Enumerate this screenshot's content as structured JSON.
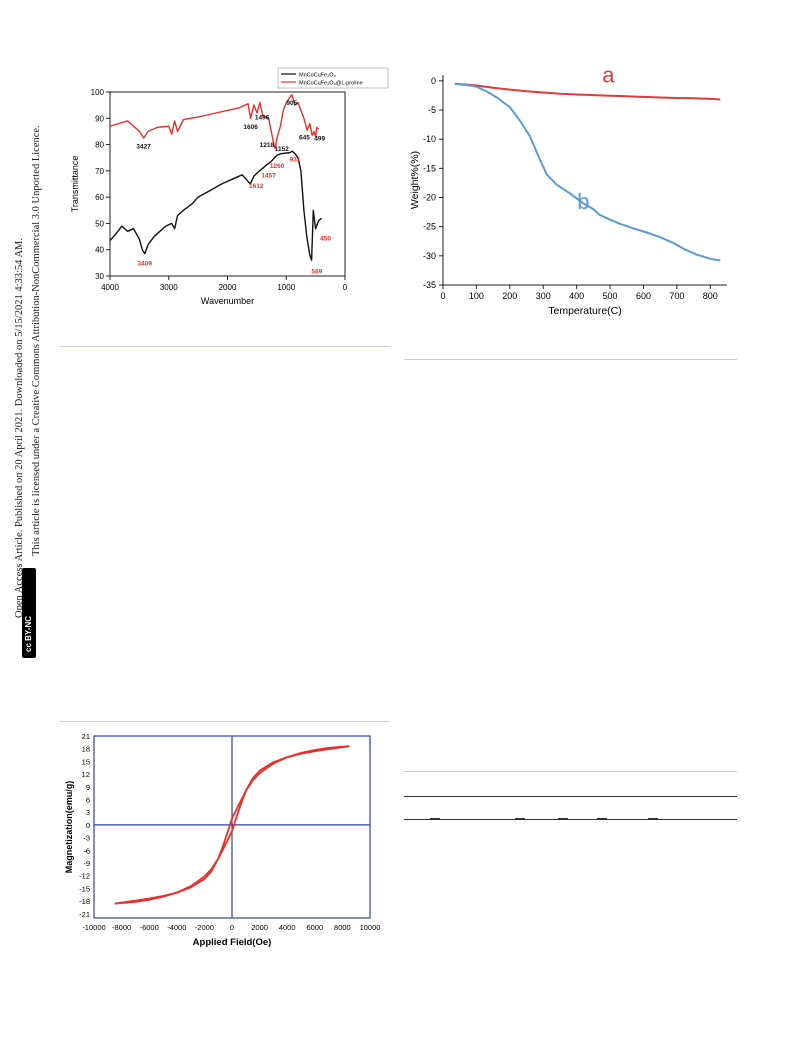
{
  "sidebar": {
    "line1": "Open Access Article. Published on 20 April 2021. Downloaded on 5/15/2021 4:33:54 AM.",
    "line2": "This article is licensed under a Creative Commons Attribution-NonCommercial 3.0 Unported Licence.",
    "badge_cc": "cc",
    "badge_by": "BY-NC"
  },
  "chart_data": [
    {
      "type": "line",
      "xlabel": "Wavenumber",
      "ylabel": "Transmittance",
      "xlim": [
        4000,
        0
      ],
      "ylim": [
        30,
        100
      ],
      "xticks": [
        4000,
        3000,
        2000,
        1000,
        0
      ],
      "yticks": [
        30,
        40,
        50,
        60,
        70,
        80,
        90,
        100
      ],
      "legend_position": "top-right",
      "series": [
        {
          "name": "MnCoCuFe₂O₄",
          "color": "#111111",
          "x": [
            4000,
            3900,
            3800,
            3700,
            3600,
            3500,
            3450,
            3409,
            3350,
            3250,
            3150,
            3050,
            2950,
            2900,
            2850,
            2750,
            2600,
            2500,
            2300,
            2100,
            1900,
            1750,
            1612,
            1550,
            1457,
            1400,
            1350,
            1260,
            1200,
            1152,
            1100,
            931,
            900,
            850,
            800,
            750,
            700,
            650,
            600,
            569,
            540,
            500,
            450,
            400
          ],
          "y": [
            43.5,
            46,
            49,
            47,
            48,
            44,
            40,
            38.5,
            42,
            45,
            47,
            49,
            50,
            48,
            53,
            55,
            57.5,
            60,
            62.5,
            65,
            67,
            68.5,
            65,
            68,
            70,
            71,
            72,
            73.5,
            75,
            76,
            76.5,
            77,
            77.5,
            76.5,
            75,
            70,
            55,
            45,
            38,
            36,
            55,
            48,
            51,
            52
          ]
        },
        {
          "name": "MnCoCuFe₂O₄@L-proline",
          "color": "#e8302a",
          "x": [
            4000,
            3850,
            3700,
            3600,
            3500,
            3427,
            3350,
            3200,
            3000,
            2950,
            2900,
            2850,
            2750,
            2500,
            2200,
            2000,
            1800,
            1650,
            1606,
            1550,
            1496,
            1450,
            1400,
            1300,
            1218,
            1190,
            1152,
            1100,
            1050,
            1000,
            905,
            850,
            800,
            750,
            700,
            645,
            600,
            560,
            530,
            499,
            480,
            450
          ],
          "y": [
            87,
            88,
            89,
            87,
            85,
            82.5,
            85,
            86.5,
            87,
            84,
            89,
            85,
            89.5,
            90.5,
            92,
            93,
            94,
            95.5,
            90,
            95,
            92,
            96,
            91,
            90,
            81,
            78.5,
            83,
            87,
            93,
            96,
            99,
            95,
            96,
            93,
            90,
            85.5,
            88,
            83.5,
            85,
            83,
            86.5,
            86
          ]
        }
      ],
      "annotations": [
        {
          "label": "3427",
          "x": 3427,
          "y": 78.5,
          "color": "#111111"
        },
        {
          "label": "1606",
          "x": 1606,
          "y": 86,
          "color": "#111111"
        },
        {
          "label": "1496",
          "x": 1410,
          "y": 89.5,
          "color": "#111111"
        },
        {
          "label": "905",
          "x": 905,
          "y": 95,
          "color": "#111111"
        },
        {
          "label": "1218",
          "x": 1330,
          "y": 79,
          "color": "#111111"
        },
        {
          "label": "1152",
          "x": 1075,
          "y": 77.5,
          "color": "#111111"
        },
        {
          "label": "645",
          "x": 690,
          "y": 82,
          "color": "#111111"
        },
        {
          "label": "499",
          "x": 430,
          "y": 81.5,
          "color": "#111111"
        },
        {
          "label": "931",
          "x": 850,
          "y": 73.5,
          "color": "#e8302a"
        },
        {
          "label": "1260",
          "x": 1155,
          "y": 71,
          "color": "#e8302a"
        },
        {
          "label": "1457",
          "x": 1300,
          "y": 67.5,
          "color": "#e8302a"
        },
        {
          "label": "1612",
          "x": 1510,
          "y": 63.5,
          "color": "#e8302a"
        },
        {
          "label": "3409",
          "x": 3409,
          "y": 34,
          "color": "#e8302a"
        },
        {
          "label": "450",
          "x": 330,
          "y": 43.5,
          "color": "#e8302a"
        },
        {
          "label": "569",
          "x": 480,
          "y": 31,
          "color": "#e8302a"
        }
      ]
    },
    {
      "type": "line",
      "xlabel": "Temperature(C)",
      "ylabel": "Weight%(%)",
      "xlim": [
        0,
        850
      ],
      "ylim": [
        -35,
        1
      ],
      "xticks": [
        0,
        100,
        200,
        300,
        400,
        500,
        600,
        700,
        800
      ],
      "yticks": [
        0,
        -5,
        -10,
        -15,
        -20,
        -25,
        -30,
        -35
      ],
      "series": [
        {
          "name": "a",
          "color": "#e03a3a",
          "x": [
            35,
            80,
            100,
            150,
            200,
            250,
            300,
            350,
            400,
            450,
            500,
            550,
            600,
            650,
            700,
            750,
            800,
            830
          ],
          "y": [
            -0.5,
            -0.7,
            -0.8,
            -1.2,
            -1.5,
            -1.8,
            -2.0,
            -2.2,
            -2.35,
            -2.45,
            -2.55,
            -2.65,
            -2.75,
            -2.85,
            -2.95,
            -3.0,
            -3.1,
            -3.2
          ]
        },
        {
          "name": "b",
          "color": "#5b9bd5",
          "x": [
            35,
            80,
            100,
            130,
            160,
            200,
            230,
            260,
            290,
            310,
            340,
            380,
            420,
            450,
            470,
            500,
            530,
            570,
            610,
            650,
            690,
            720,
            760,
            800,
            830
          ],
          "y": [
            -0.5,
            -0.8,
            -1.0,
            -1.8,
            -2.8,
            -4.5,
            -6.8,
            -9.5,
            -13.5,
            -16.0,
            -17.8,
            -19.3,
            -21.0,
            -22.0,
            -23.0,
            -23.8,
            -24.5,
            -25.3,
            -26.0,
            -26.8,
            -27.8,
            -28.8,
            -29.8,
            -30.5,
            -30.8
          ]
        }
      ],
      "labels": [
        {
          "text": "a",
          "x": 495,
          "y": -0.3,
          "color": "#e03a3a"
        },
        {
          "text": "b",
          "x": 420,
          "y": -22.0,
          "color": "#5b9bd5"
        }
      ]
    },
    {
      "type": "line",
      "xlabel": "Applied Field(Oe)",
      "ylabel": "Magnetization(emu/g)",
      "xlim": [
        -10000,
        10000
      ],
      "ylim": [
        -22,
        21
      ],
      "xticks": [
        -10000,
        -8000,
        -6000,
        -4000,
        -2000,
        0,
        2000,
        4000,
        6000,
        8000,
        10000
      ],
      "yticks": [
        21,
        18,
        15,
        12,
        9,
        6,
        3,
        0,
        -3,
        -6,
        -9,
        -12,
        -15,
        -18,
        -21
      ],
      "series": [
        {
          "name": "",
          "color": "#e8302a",
          "x": [
            8500,
            7000,
            6000,
            5000,
            4000,
            3000,
            2000,
            1500,
            1000,
            500,
            0,
            -300,
            -600,
            -1000,
            -1500,
            -2000,
            -3000,
            -4000,
            -5000,
            -6000,
            -7000,
            -8500
          ],
          "y": [
            18.6,
            18.2,
            17.7,
            17.0,
            16.0,
            14.5,
            12.2,
            10.5,
            8.0,
            4.8,
            1.5,
            -1.5,
            -4.5,
            -8.0,
            -11.0,
            -12.8,
            -14.8,
            -16.0,
            -16.8,
            -17.4,
            -17.9,
            -18.6
          ]
        },
        {
          "name": "",
          "color": "#e8302a",
          "x": [
            -8500,
            -7000,
            -6000,
            -5000,
            -4000,
            -3000,
            -2000,
            -1500,
            -1000,
            -500,
            0,
            300,
            600,
            1000,
            1500,
            2000,
            3000,
            4000,
            5000,
            6000,
            7000,
            8500
          ],
          "y": [
            -18.6,
            -18.2,
            -17.7,
            -17.0,
            -16.0,
            -14.5,
            -12.2,
            -10.5,
            -8.0,
            -4.8,
            -1.5,
            1.5,
            4.5,
            8.0,
            11.0,
            12.8,
            14.8,
            16.0,
            16.8,
            17.4,
            17.9,
            18.6
          ]
        }
      ]
    }
  ]
}
